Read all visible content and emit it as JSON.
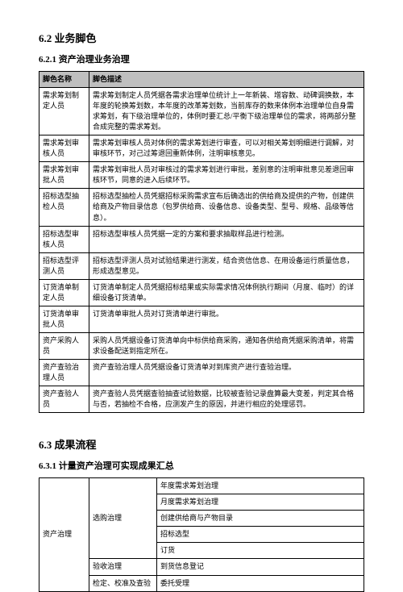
{
  "section62": {
    "heading": "6.2 业务脚色",
    "sub_heading": "6.2.1 资产治理业务治理",
    "table": {
      "headers": [
        "脚色名称",
        "脚色描述"
      ],
      "rows": [
        {
          "role": "需求筹划制定人员",
          "desc": "需求筹划制定人员凭据各需求治理单位统计上一年新装、增容数、动碑调换数，本年度的轮换筹划数，本年度的改革筹划数，当前库存的数来体例本治理单位自身需求筹划，有下级治理单位的，体例时要汇总/平衡下级治理单位的需求，将两部分整合成完整的需求筹划。"
        },
        {
          "role": "需求筹划审核人员",
          "desc": "需求筹划审核人员对体例的需求筹划进行审查，可以对相关筹划明细进行调解，对审核环节，对己过筹退回重新体例，注明审核意见。"
        },
        {
          "role": "需求筹划审批人员",
          "desc": "需求筹划审批人员对审核过的需求筹划进行审批，差别意的注明审批意见差退回审核环节，同意的进入后续环节。"
        },
        {
          "role": "招标选型抽检人员",
          "desc": "招标选型抽检人员凭据招标采购需求宣布后确选出的供给商及提供的产物，创建供给商及产物目录信息（包罗供给商、设备信息、设备类型、型号、规格、品级等信息）。"
        },
        {
          "role": "招标选型审核人员",
          "desc": "招标选型审核人员凭据一定的方案和要求抽取样品进行检测。"
        },
        {
          "role": "招标选型评测人员",
          "desc": "招标选型评测人员对试验结果进行测发，结合资信信息、在用设备运行质量信息，形成选型意见。"
        },
        {
          "role": "订货清单制定人员",
          "desc": "订货清单制定人员凭据招标结果或实际需求情况体例执行期间（月度、临时）的详细设备订货清单。"
        },
        {
          "role": "订货清单审批人员",
          "desc": "订货清单审批人员对订货清单进行审批。"
        },
        {
          "role": "资产采购人员",
          "desc": "采购人员凭据设备订货清单向中标供给商采购，通知各供给商凭据采购清单，将需求设备配送到指定所在。"
        },
        {
          "role": "资产查验治理人员",
          "desc": "资产查验治理人员凭据设备订货清单对到库资产进行查验治理。"
        },
        {
          "role": "资产查验人员",
          "desc": "资产查验人员凭据查验抽查试验数据，比较被查验记录盘算最大变差，判定其合格与否，若抽检不合格，应测发产生的原因，并进行相应的处理惩罚。"
        }
      ]
    }
  },
  "section63": {
    "heading": "6.3 成果流程",
    "sub_heading": "6.3.1 计量资产治理可实现成果汇总",
    "table": {
      "c1": "资产治理",
      "group1": {
        "label": "选购治理",
        "rows": [
          "年度需求筹划治理",
          "月度需求筹划治理",
          "创建供给商与产物目录",
          "招标选型",
          "订货"
        ]
      },
      "row2": {
        "c2": "验收治理",
        "c3": "到货信息登记"
      },
      "row3": {
        "c2": "检定、校准及查验",
        "c3": "委托受理"
      }
    }
  }
}
